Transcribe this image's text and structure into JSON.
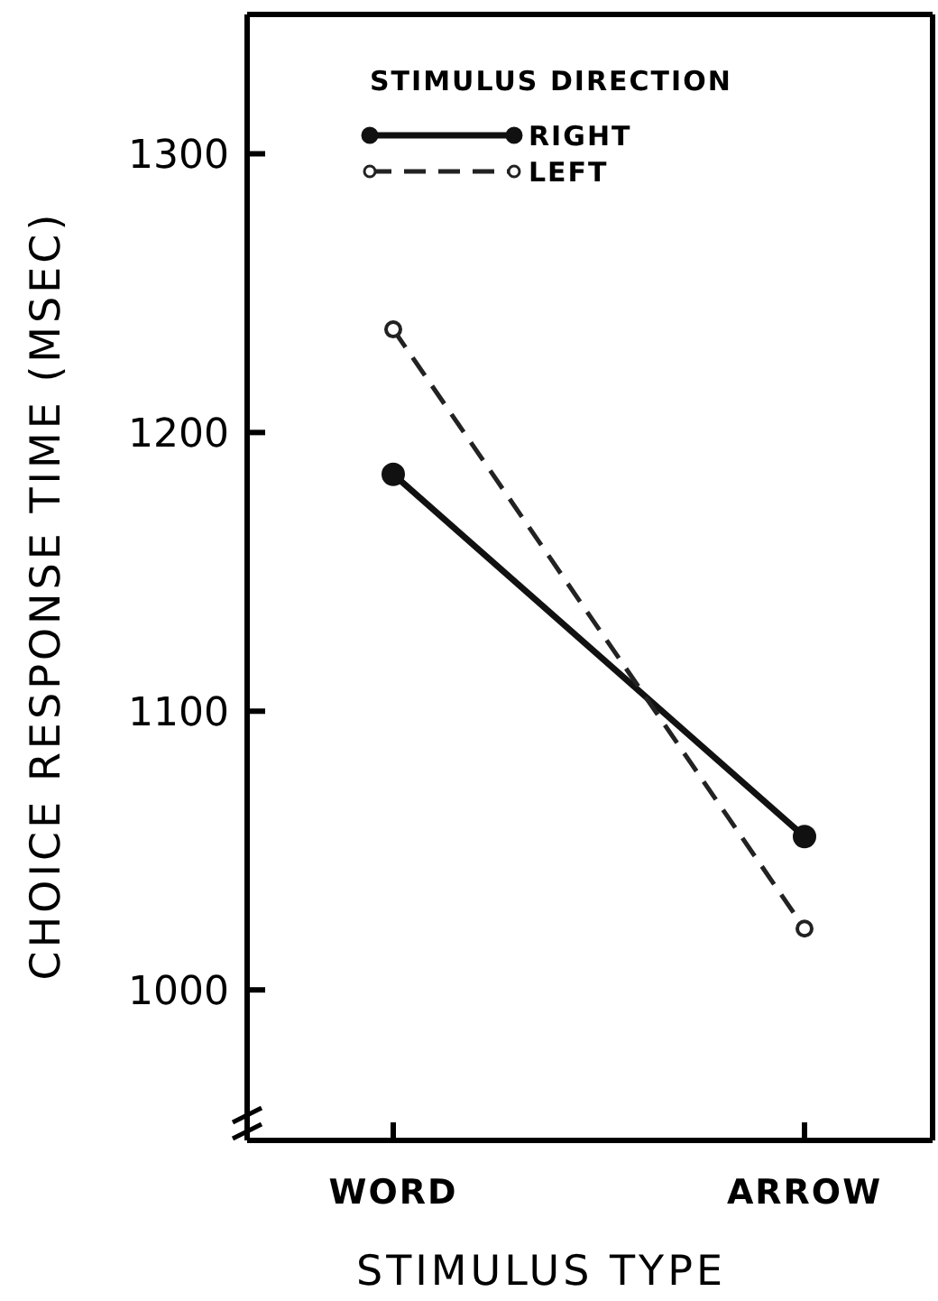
{
  "chart_data": {
    "type": "line",
    "xlabel": "STIMULUS TYPE",
    "ylabel": "CHOICE RESPONSE TIME (MSEC)",
    "legend_title": "STIMULUS DIRECTION",
    "categories": [
      "WORD",
      "ARROW"
    ],
    "series": [
      {
        "name": "RIGHT",
        "color": "#111111",
        "values": [
          1185,
          1055
        ],
        "line_style": "solid"
      },
      {
        "name": "LEFT",
        "color": "#222222",
        "values": [
          1237,
          1022
        ],
        "line_style": "dashed"
      }
    ],
    "ylim": [
      946,
      1350
    ],
    "yticks": [
      1000,
      1100,
      1200,
      1300
    ],
    "marker": "circle",
    "legend": "top left",
    "grid": false
  }
}
